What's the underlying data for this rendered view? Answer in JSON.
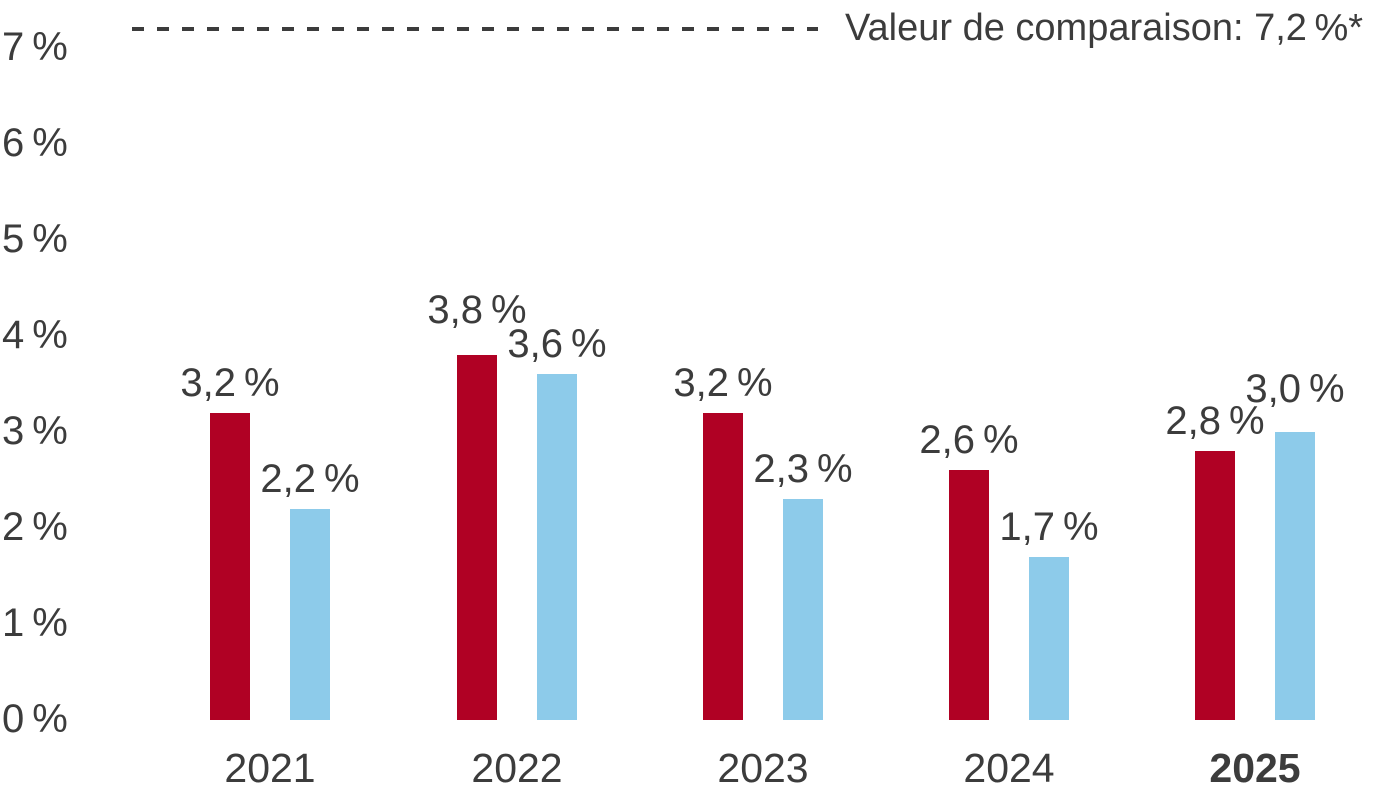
{
  "chart_data": {
    "type": "bar",
    "categories": [
      "2021",
      "2022",
      "2023",
      "2024",
      "2025"
    ],
    "series": [
      {
        "id": "red",
        "color": "#b00124",
        "values": [
          3.2,
          3.8,
          3.2,
          2.6,
          2.8
        ],
        "labels": [
          "3,2 %",
          "3,8 %",
          "3,2 %",
          "2,6 %",
          "2,8 %"
        ]
      },
      {
        "id": "blue",
        "color": "#8dcbea",
        "values": [
          2.2,
          3.6,
          2.3,
          1.7,
          3.0
        ],
        "labels": [
          "2,2 %",
          "3,6 %",
          "2,3 %",
          "1,7 %",
          "3,0 %"
        ]
      }
    ],
    "y_axis": {
      "tick_labels": [
        "0 %",
        "1 %",
        "2 %",
        "3 %",
        "4 %",
        "5 %",
        "6 %",
        "7 %"
      ],
      "tick_values": [
        0,
        1,
        2,
        3,
        4,
        5,
        6,
        7
      ]
    },
    "reference_line": {
      "value": 7.2,
      "label": "Valeur de comparaison: 7,2 %*",
      "style": "dashed"
    },
    "ylim": [
      0,
      7.2
    ],
    "grid": false,
    "legend": "none",
    "highlight_category": "2025",
    "text_color": "#3c3c3c"
  }
}
